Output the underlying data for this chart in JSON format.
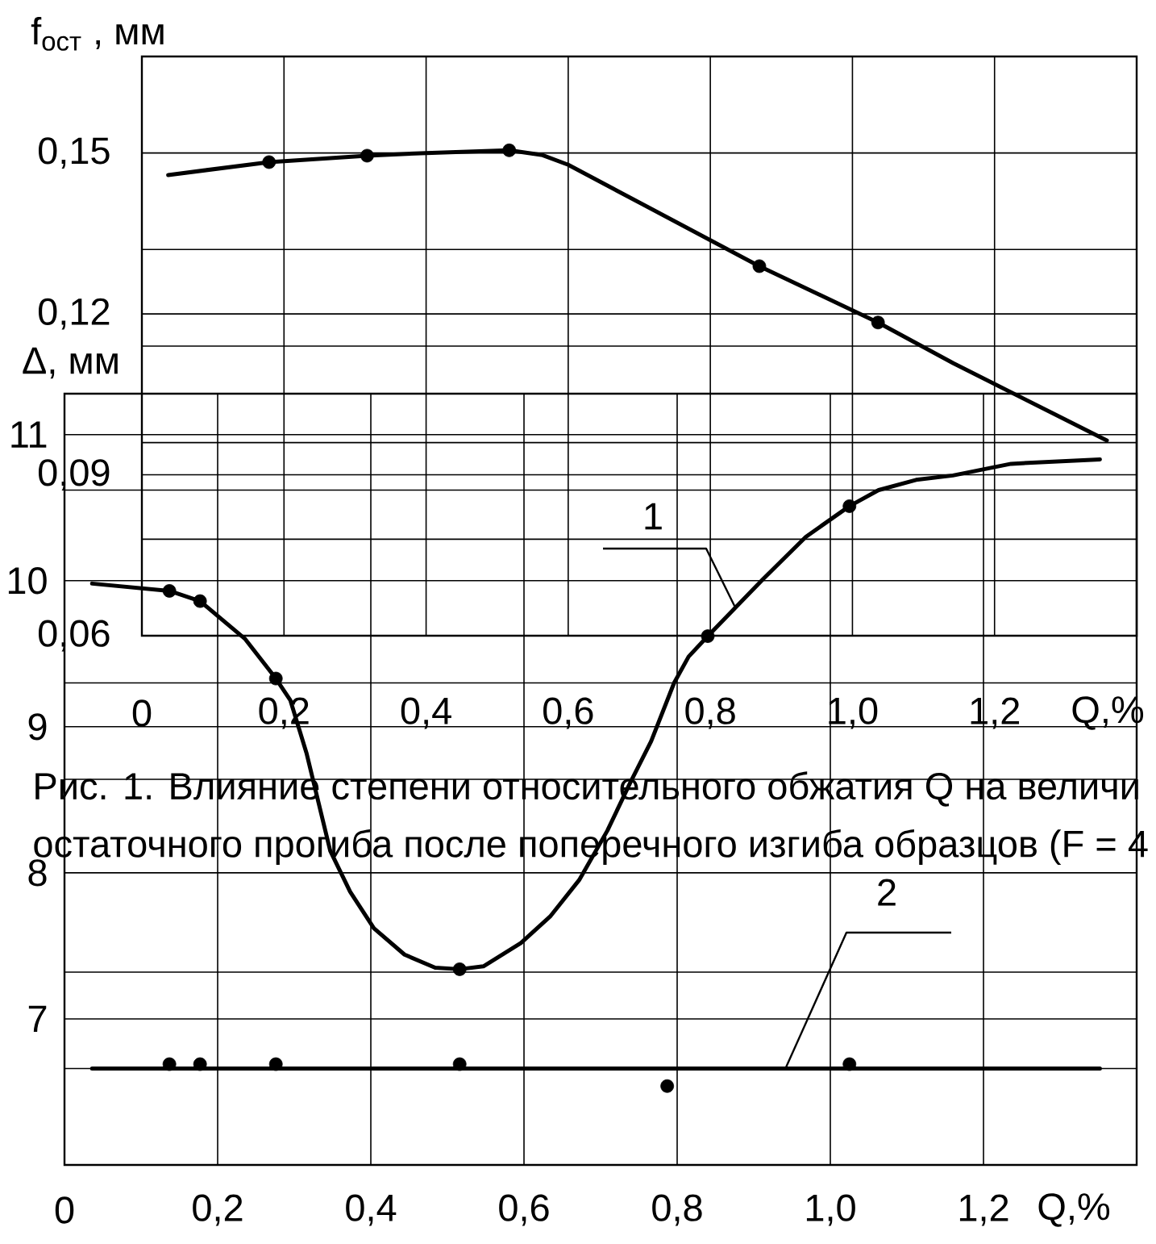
{
  "chart_data": [
    {
      "type": "line",
      "ylabel": "f$_{ост}$ , мм",
      "xlabel": "Q,%",
      "xlim": [
        0,
        1.4
      ],
      "xticks": [
        0,
        {
          "value": 0.2,
          "label": "0,2"
        },
        {
          "value": 0.4,
          "label": "0,4"
        },
        {
          "value": 0.6,
          "label": "0,6"
        },
        {
          "value": 0.8,
          "label": "0,8"
        },
        {
          "value": 1.0,
          "label": "1,0"
        },
        {
          "value": 1.2,
          "label": "1,2"
        }
      ],
      "ylim": [
        0.06,
        0.168
      ],
      "yticks": [
        {
          "value": 0.06,
          "label": "0,06"
        },
        {
          "value": 0.078,
          "label": null
        },
        {
          "value": 0.09,
          "label": "0,09"
        },
        {
          "value": 0.096,
          "label": null
        },
        {
          "value": 0.114,
          "label": null
        },
        {
          "value": 0.12,
          "label": "0,12"
        },
        {
          "value": 0.132,
          "label": null
        },
        {
          "value": 0.15,
          "label": "0,15"
        }
      ],
      "grid": true,
      "series": [
        {
          "color": "#000000",
          "x": [
            0.037,
            0.179,
            0.317,
            0.4,
            0.517,
            0.564,
            0.6,
            0.869,
            1.036,
            1.142,
            1.358
          ],
          "values": [
            0.1459,
            0.1483,
            0.1495,
            0.15,
            0.1505,
            0.1496,
            0.1478,
            0.1289,
            0.1184,
            0.1108,
            0.0964
          ]
        },
        {
          "type": "scatter",
          "marker": "circle",
          "color": "#000000",
          "x": [
            0.179,
            0.317,
            0.517,
            0.869,
            1.036
          ],
          "values": [
            0.1483,
            0.1495,
            0.1505,
            0.1289,
            0.1184
          ]
        }
      ],
      "annotations": [
        "Рис. 1. Влияние степени относительного обжатия Q на величи",
        "остаточного прогиба после поперечного изгиба образцов (F = 4"
      ]
    },
    {
      "type": "line",
      "ylabel": "Δ, мм",
      "xlabel": "Q,%",
      "xlim": [
        0,
        1.4
      ],
      "xticks": [
        0,
        {
          "value": 0.2,
          "label": "0,2"
        },
        {
          "value": 0.4,
          "label": "0,4"
        },
        {
          "value": 0.6,
          "label": "0,6"
        },
        {
          "value": 0.8,
          "label": "0,8"
        },
        {
          "value": 1.0,
          "label": "1,0"
        },
        {
          "value": 1.2,
          "label": "1,2"
        }
      ],
      "ylim": [
        6,
        11.28
      ],
      "yticks": [
        {
          "value": 6.66,
          "label": null
        },
        7,
        {
          "value": 7.32,
          "label": null
        },
        8,
        {
          "value": 8.64,
          "label": null
        },
        9,
        {
          "value": 9.3,
          "label": null
        },
        10,
        {
          "value": 10.62,
          "label": null
        },
        11
      ],
      "grid": true,
      "series": [
        {
          "name": "1",
          "color": "#000000",
          "x": [
            0.036,
            0.137,
            0.177,
            0.236,
            0.276,
            0.295,
            0.316,
            0.347,
            0.373,
            0.404,
            0.444,
            0.484,
            0.516,
            0.547,
            0.596,
            0.634,
            0.672,
            0.709,
            0.739,
            0.766,
            0.796,
            0.815,
            0.84,
            0.912,
            0.968,
            1.025,
            1.063,
            1.112,
            1.16,
            1.236,
            1.352
          ],
          "values": [
            9.98,
            9.93,
            9.86,
            9.6,
            9.33,
            9.18,
            8.82,
            8.15,
            7.87,
            7.62,
            7.44,
            7.35,
            7.34,
            7.36,
            7.52,
            7.7,
            7.95,
            8.29,
            8.62,
            8.9,
            9.3,
            9.48,
            9.62,
            10.01,
            10.3,
            10.51,
            10.62,
            10.69,
            10.72,
            10.8,
            10.83
          ]
        },
        {
          "type": "scatter",
          "marker": "circle",
          "color": "#000000",
          "x": [
            0.137,
            0.177,
            0.276,
            0.516,
            0.84,
            1.025
          ],
          "values": [
            9.93,
            9.86,
            9.33,
            7.34,
            9.62,
            10.51
          ]
        },
        {
          "name": "2",
          "color": "#000000",
          "x": [
            0.036,
            1.352
          ],
          "values": [
            6.66,
            6.66
          ]
        },
        {
          "type": "scatter",
          "marker": "circle",
          "color": "#000000",
          "x": [
            0.137,
            0.177,
            0.276,
            0.516,
            0.787,
            1.025
          ],
          "values": [
            6.69,
            6.69,
            6.69,
            6.69,
            6.54,
            6.69
          ]
        }
      ]
    }
  ]
}
